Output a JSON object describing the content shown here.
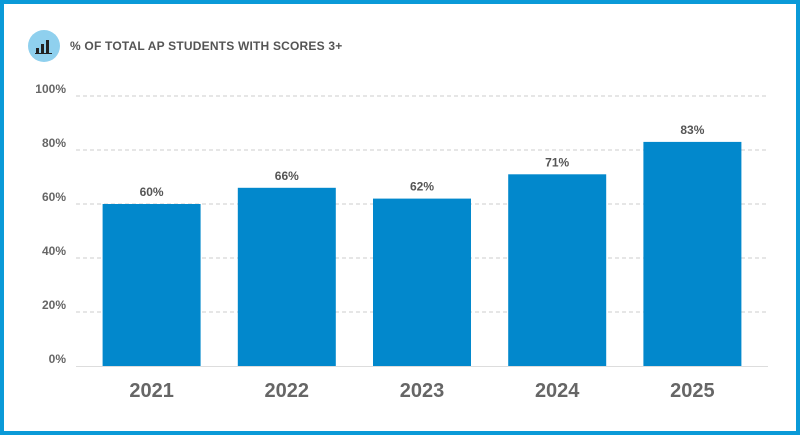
{
  "colors": {
    "frame": "#0a9ad8",
    "bar": "#0288cc",
    "grid": "#cccccc",
    "icon_bg": "#8fd0ee"
  },
  "header": {
    "icon": "bar-chart-icon"
  },
  "chart_data": {
    "type": "bar",
    "title": "% OF TOTAL AP STUDENTS WITH SCORES 3+",
    "categories": [
      "2021",
      "2022",
      "2023",
      "2024",
      "2025"
    ],
    "values": [
      60,
      66,
      62,
      71,
      83
    ],
    "value_labels": [
      "60%",
      "66%",
      "62%",
      "71%",
      "83%"
    ],
    "yticks": [
      0,
      20,
      40,
      60,
      80,
      100
    ],
    "ytick_labels": [
      "0%",
      "20%",
      "40%",
      "60%",
      "80%",
      "100%"
    ],
    "ylim": [
      0,
      100
    ],
    "grid": true,
    "xlabel": "",
    "ylabel": ""
  }
}
